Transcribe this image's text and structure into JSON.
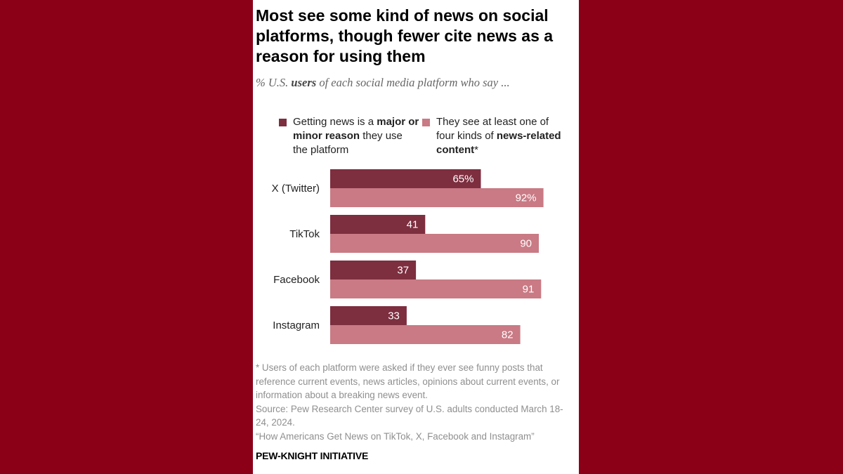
{
  "title": "Most see some kind of news on social platforms, though fewer cite news as a reason for using them",
  "subtitle": {
    "prefix": "% U.S. ",
    "bold": "users",
    "suffix": " of each social media platform who say ..."
  },
  "colors": {
    "page_background": "#8b0017",
    "series_reason": "#7d2e3f",
    "series_content": "#c97a84"
  },
  "legend": [
    {
      "pre": "Getting news is a ",
      "bold": "major or minor reason",
      "post": " they use the platform"
    },
    {
      "pre": "They see at least one of four kinds of ",
      "bold": "news-related content",
      "post": "*"
    }
  ],
  "chart_data": {
    "type": "bar",
    "orientation": "horizontal",
    "categories": [
      "X (Twitter)",
      "TikTok",
      "Facebook",
      "Instagram"
    ],
    "series": [
      {
        "values": [
          65,
          41,
          37,
          33
        ],
        "labels": [
          "65%",
          "41",
          "37",
          "33"
        ]
      },
      {
        "values": [
          92,
          90,
          91,
          82
        ],
        "labels": [
          "92%",
          "90",
          "91",
          "82"
        ]
      }
    ],
    "xlim": [
      0,
      100
    ],
    "grid": false
  },
  "notes": [
    "* Users of each platform were asked if they ever see funny posts that reference current events, news articles, opinions about current events, or information about a breaking news event.",
    "Source: Pew Research Center survey of U.S. adults conducted March 18-24, 2024.",
    "“How Americans Get News on TikTok, X, Facebook and Instagram”"
  ],
  "brand": "PEW-KNIGHT INITIATIVE"
}
